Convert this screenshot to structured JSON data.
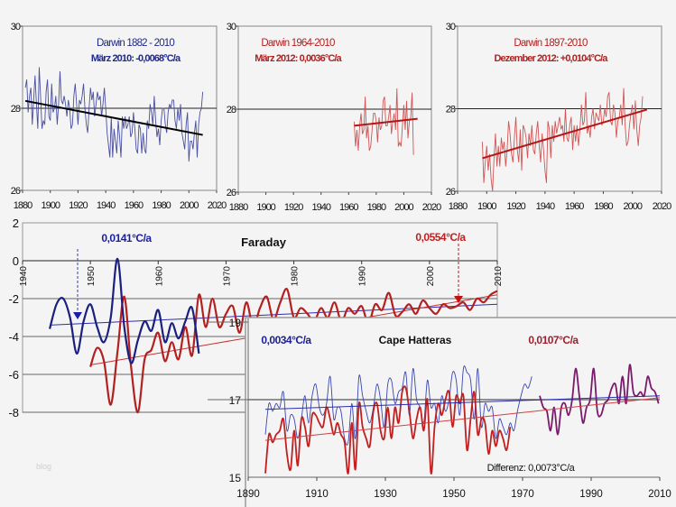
{
  "watermark": "blog",
  "chart_data": [
    {
      "id": "darwin-1882",
      "type": "line",
      "title": "Darwin 1882 - 2010",
      "subtitle": "März 2010: -0,0068°C/a",
      "title_color": "#1f2a8c",
      "series_color": "#4a4fa0",
      "trend_color": "#000000",
      "xlim": [
        1880,
        2020
      ],
      "ylim": [
        26,
        30
      ],
      "xticks": [
        1880,
        1900,
        1920,
        1940,
        1960,
        1980,
        2000,
        2020
      ],
      "yticks": [
        26,
        28,
        30
      ],
      "reference_line": 28,
      "trend": {
        "x": [
          1882,
          2010
        ],
        "y": [
          28.18,
          27.35
        ]
      },
      "series": [
        {
          "name": "Darwin",
          "x_start": 1882,
          "values": [
            28.5,
            28.7,
            27.9,
            28.3,
            28.5,
            27.6,
            28.2,
            28.8,
            28.1,
            27.5,
            29.0,
            28.3,
            27.5,
            27.7,
            27.6,
            28.4,
            28.7,
            27.8,
            27.7,
            28.6,
            27.9,
            28.0,
            28.3,
            27.6,
            28.1,
            28.9,
            28.2,
            28.1,
            28.3,
            28.1,
            27.8,
            28.2,
            28.0,
            27.5,
            27.6,
            28.3,
            28.6,
            28.1,
            27.6,
            28.2,
            28.1,
            28.3,
            28.6,
            28.0,
            27.6,
            27.4,
            28.0,
            28.5,
            28.2,
            28.4,
            27.8,
            28.1,
            28.4,
            28.2,
            28.3,
            27.8,
            28.1,
            28.5,
            28.0,
            27.4,
            27.1,
            26.8,
            27.8,
            26.8,
            27.5,
            27.2,
            26.9,
            27.7,
            27.3,
            26.8,
            27.8,
            27.5,
            27.8,
            27.5,
            27.6,
            27.8,
            27.3,
            27.4,
            27.9,
            27.5,
            27.0,
            26.9,
            27.6,
            27.5,
            26.9,
            27.4,
            27.0,
            26.9,
            27.7,
            27.5,
            28.1,
            27.9,
            27.6,
            28.3,
            27.7,
            27.3,
            27.5,
            27.1,
            27.7,
            28.0,
            28.0,
            27.6,
            27.4,
            27.9,
            28.1,
            28.0,
            28.2,
            28.2,
            27.7,
            27.5,
            28.0,
            27.7,
            28.1,
            27.4,
            27.2,
            27.0,
            27.6,
            27.9,
            26.7,
            27.2,
            27.2,
            27.0,
            27.4,
            27.7,
            26.8,
            27.6,
            27.9,
            28.0,
            28.4
          ]
        }
      ]
    },
    {
      "id": "darwin-1964",
      "type": "line",
      "title": "Darwin 1964-2010",
      "subtitle": "März 2012: 0,0036°C/a",
      "title_color": "#b32020",
      "series_color": "#d25555",
      "trend_color": "#b01818",
      "xlim": [
        1880,
        2020
      ],
      "ylim": [
        26,
        30
      ],
      "xticks": [
        1880,
        1900,
        1920,
        1940,
        1960,
        1980,
        2000,
        2020
      ],
      "yticks": [
        26,
        28,
        30
      ],
      "reference_line": 28,
      "trend": {
        "x": [
          1964,
          2010
        ],
        "y": [
          27.6,
          27.77
        ]
      },
      "series": [
        {
          "name": "Darwin",
          "x_start": 1964,
          "values": [
            27.7,
            27.1,
            27.5,
            27.0,
            27.6,
            27.9,
            27.4,
            27.5,
            28.3,
            27.3,
            27.6,
            27.0,
            27.1,
            27.5,
            27.9,
            27.9,
            27.7,
            27.2,
            27.8,
            27.5,
            27.6,
            28.2,
            28.3,
            27.6,
            27.6,
            27.8,
            28.1,
            27.4,
            27.7,
            27.9,
            27.5,
            28.5,
            27.1,
            27.2,
            27.1,
            27.6,
            28.1,
            27.5,
            28.2,
            27.3,
            27.7,
            27.8,
            28.4,
            26.9
          ]
        }
      ]
    },
    {
      "id": "darwin-1897",
      "type": "line",
      "title": "Darwin 1897-2010",
      "subtitle": "Dezember 2012: +0,0104°C/a",
      "title_color": "#b32020",
      "series_color": "#d25555",
      "trend_color": "#b01818",
      "xlim": [
        1880,
        2020
      ],
      "ylim": [
        26,
        30
      ],
      "xticks": [
        1880,
        1900,
        1920,
        1940,
        1960,
        1980,
        2000,
        2020
      ],
      "yticks": [
        26,
        28,
        30
      ],
      "reference_line": 28,
      "trend": {
        "x": [
          1897,
          2010
        ],
        "y": [
          26.8,
          27.98
        ]
      },
      "series": [
        {
          "name": "Darwin",
          "x_start": 1897,
          "values": [
            27.2,
            26.2,
            26.7,
            27.1,
            26.5,
            26.9,
            26.3,
            26.0,
            26.8,
            27.4,
            26.6,
            27.1,
            26.6,
            27.3,
            27.0,
            27.2,
            26.6,
            27.0,
            27.7,
            27.4,
            26.9,
            26.7,
            27.3,
            27.8,
            27.0,
            26.7,
            27.5,
            26.5,
            27.6,
            27.5,
            27.3,
            26.8,
            27.4,
            27.1,
            27.6,
            27.0,
            26.9,
            27.4,
            27.7,
            27.1,
            26.7,
            27.4,
            27.0,
            26.5,
            26.2,
            27.7,
            27.5,
            26.8,
            27.6,
            27.2,
            27.7,
            27.4,
            27.6,
            27.8,
            27.5,
            27.6,
            27.2,
            28.0,
            27.3,
            27.2,
            27.6,
            27.8,
            27.0,
            27.6,
            27.2,
            27.6,
            27.1,
            27.5,
            28.1,
            27.6,
            27.7,
            28.4,
            27.4,
            27.6,
            27.3,
            27.8,
            28.0,
            27.5,
            27.9,
            27.8,
            27.7,
            28.1,
            27.6,
            27.7,
            28.0,
            27.8,
            28.3,
            28.4,
            27.7,
            27.6,
            28.1,
            27.9,
            27.3,
            27.7,
            27.8,
            28.1,
            27.6,
            28.5,
            27.6,
            27.1,
            27.2,
            27.6,
            27.9,
            28.1,
            27.5,
            28.2,
            27.5,
            27.1,
            27.6,
            27.8,
            28.3
          ]
        }
      ]
    },
    {
      "id": "faraday",
      "type": "line",
      "title": "Faraday",
      "xlim": [
        1940,
        2010
      ],
      "ylim": [
        -8,
        2
      ],
      "xticks": [
        1940,
        1950,
        1960,
        1970,
        1980,
        1990,
        2000,
        2010
      ],
      "yticks": [
        2,
        0,
        -2,
        -4,
        -6,
        -8
      ],
      "annotations": [
        {
          "text": "0,0141°C/a",
          "color": "#1a1f99",
          "arrow_x": 1948
        },
        {
          "text": "0,0554°C/a",
          "color": "#c02020",
          "arrow_x": 2004
        }
      ],
      "series": [
        {
          "name": "blue",
          "color": "#1a1f80",
          "x_start": 1944,
          "values": [
            -3.6,
            -2.3,
            -2.0,
            -3.0,
            -4.9,
            -3.2,
            -2.3,
            -3.5,
            -4.3,
            -3.0,
            0.1,
            -3.5,
            -5.4,
            -4.2,
            -3.2,
            -3.7,
            -2.6,
            -4.3,
            -3.3,
            -4.1,
            -3.2,
            -2.5,
            -4.9
          ]
        },
        {
          "name": "red",
          "color": "#b32020",
          "x_start": 1950,
          "values": [
            -5.6,
            -4.6,
            -5.3,
            -7.6,
            -4.8,
            -1.9,
            -5.6,
            -8.0,
            -5.2,
            -4.7,
            -3.8,
            -5.3,
            -4.3,
            -5.2,
            -3.5,
            -5.0,
            -1.8,
            -3.5,
            -2.0,
            -3.5,
            -2.8,
            -2.4,
            -3.8,
            -2.2,
            -3.5,
            -2.5,
            -1.9,
            -3.1,
            -2.2,
            -1.5,
            -3.0,
            -2.5,
            -2.8,
            -3.2,
            -2.5,
            -3.0,
            -2.2,
            -3.2,
            -2.5,
            -2.8,
            -2.4,
            -3.3,
            -2.3,
            -2.6,
            -1.7,
            -2.9,
            -2.7,
            -2.3,
            -2.8,
            -2.1,
            -2.5,
            -2.8,
            -2.3,
            -2.5,
            -2.4,
            -2.2,
            -2.6,
            -2.0,
            -2.2,
            -1.8,
            -1.6
          ]
        }
      ],
      "trends": [
        {
          "color": "#2a2fb0",
          "x": [
            1944,
            2010
          ],
          "y": [
            -3.4,
            -2.3
          ]
        },
        {
          "color": "#c83030",
          "x": [
            1950,
            2010
          ],
          "y": [
            -5.5,
            -1.8
          ]
        }
      ]
    },
    {
      "id": "cape-hatteras",
      "type": "line",
      "title": "Cape Hatteras",
      "footnote": "Differenz: 0,0073°C/a",
      "xlim": [
        1890,
        2010
      ],
      "ylim": [
        15,
        19
      ],
      "xticks": [
        1890,
        1910,
        1930,
        1950,
        1970,
        1990,
        2010
      ],
      "yticks": [
        15,
        17,
        19
      ],
      "annotations": [
        {
          "text": "0,0034°C/a",
          "color": "#1a1f99"
        },
        {
          "text": "0,0107°C/a",
          "color": "#a02030"
        }
      ],
      "series": [
        {
          "name": "blue",
          "color": "#3a44b0",
          "x_start": 1895,
          "values": [
            16.1,
            16.9,
            16.7,
            16.9,
            16.8,
            17.2,
            16.2,
            16.6,
            16.5,
            16.0,
            16.5,
            17.1,
            16.4,
            17.1,
            17.4,
            16.8,
            16.6,
            16.9,
            17.6,
            16.5,
            16.8,
            16.7,
            16.0,
            15.9,
            16.9,
            16.0,
            17.6,
            17.1,
            16.7,
            16.4,
            16.8,
            17.4,
            17.0,
            16.3,
            17.4,
            17.5,
            16.9,
            17.2,
            17.3,
            17.7,
            16.6,
            17.8,
            17.0,
            16.8,
            16.4,
            17.5,
            16.8,
            16.9,
            16.4,
            17.1,
            16.7,
            17.0,
            17.7,
            17.5,
            16.6,
            17.8,
            17.7,
            17.5,
            16.5,
            17.8,
            16.3,
            16.9,
            16.7,
            16.8,
            16.0,
            16.5,
            16.3,
            16.1,
            16.4,
            16.2,
            16.7,
            17.1,
            17.4,
            17.3,
            17.6
          ]
        },
        {
          "name": "red",
          "color": "#c02020",
          "x_start": 1895,
          "values": [
            15.1,
            16.1,
            15.9,
            16.1,
            16.2,
            16.5,
            15.6,
            15.2,
            16.2,
            15.3,
            16.5,
            16.3,
            15.8,
            16.6,
            16.6,
            16.4,
            16.3,
            16.8,
            16.5,
            16.1,
            16.4,
            16.1,
            15.9,
            15.1,
            16.4,
            15.2,
            16.9,
            16.3,
            16.0,
            15.8,
            16.7,
            16.9,
            16.2,
            16.0,
            16.8,
            16.0,
            16.8,
            16.4,
            17.2,
            17.3,
            16.7,
            16.0,
            16.5,
            16.8,
            16.2,
            17.0,
            15.1,
            16.3,
            16.9,
            16.6,
            17.0,
            17.2,
            16.3,
            17.1,
            16.9,
            17.1,
            15.7,
            16.5,
            17.2,
            16.1,
            16.5,
            16.4,
            15.6,
            16.2,
            15.8,
            16.2,
            16.0,
            15.7,
            16.3
          ]
        },
        {
          "name": "purple",
          "color": "#7a1a6a",
          "x_start": 1975,
          "values": [
            17.1,
            16.8,
            16.7,
            16.2,
            16.8,
            16.1,
            16.8,
            16.9,
            16.6,
            17.0,
            17.8,
            17.1,
            16.4,
            16.8,
            17.0,
            17.8,
            16.7,
            16.6,
            16.9,
            17.0,
            17.3,
            17.4,
            16.9,
            17.6,
            16.9,
            17.9,
            17.2,
            17.1,
            17.2,
            17.1,
            17.6,
            17.3,
            17.2,
            16.9
          ]
        }
      ],
      "trends": [
        {
          "color": "#2a2fb0",
          "x": [
            1895,
            2010
          ],
          "y": [
            16.75,
            17.1
          ]
        },
        {
          "color": "#d04040",
          "x": [
            1895,
            2010
          ],
          "y": [
            15.95,
            17.05
          ]
        }
      ]
    }
  ]
}
